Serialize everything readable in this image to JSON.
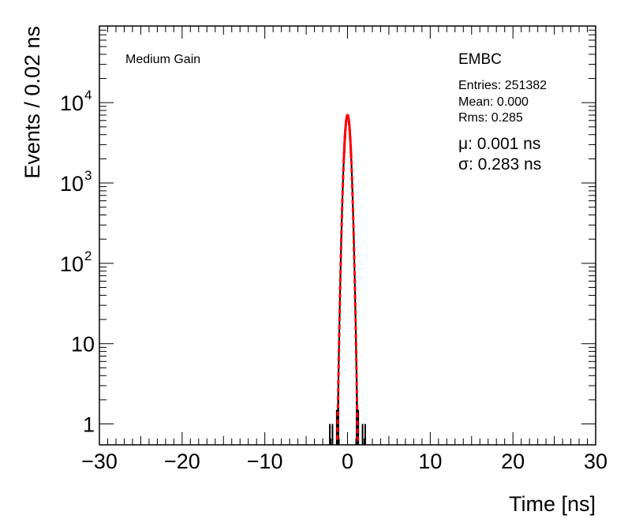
{
  "chart_data": {
    "type": "histogram",
    "xlabel": "Time [ns]",
    "ylabel": "Events / 0.02 ns",
    "xlim": [
      -30,
      30
    ],
    "ylim": [
      0.55,
      90000
    ],
    "yscale": "log",
    "x_ticks": [
      "−30",
      "−20",
      "−10",
      "0",
      "10",
      "20",
      "30"
    ],
    "x_tick_values": [
      -30,
      -20,
      -10,
      0,
      10,
      20,
      30
    ],
    "y_ticks": [
      {
        "value": 1,
        "label": "1"
      },
      {
        "value": 10,
        "label": "10"
      },
      {
        "value": 100,
        "base": "10",
        "exp": "2"
      },
      {
        "value": 1000,
        "base": "10",
        "exp": "3"
      },
      {
        "value": 10000,
        "base": "10",
        "exp": "4"
      }
    ],
    "annotations": {
      "gain": "Medium Gain",
      "detector": "EMBC",
      "entries": "Entries: 251382",
      "mean": "Mean: 0.000",
      "rms": "Rms: 0.285",
      "mu": "μ: 0.001 ns",
      "sigma": "σ: 0.283 ns"
    },
    "fit": {
      "function": "gaussian",
      "amplitude": 7000,
      "mu": 0.001,
      "sigma": 0.283,
      "color": "#ff0000"
    },
    "histogram": {
      "color": "#000000",
      "bin_width": 0.02,
      "outlier_bins": [
        -2.14,
        -1.82,
        1.82,
        2.14
      ]
    },
    "grid": false
  }
}
